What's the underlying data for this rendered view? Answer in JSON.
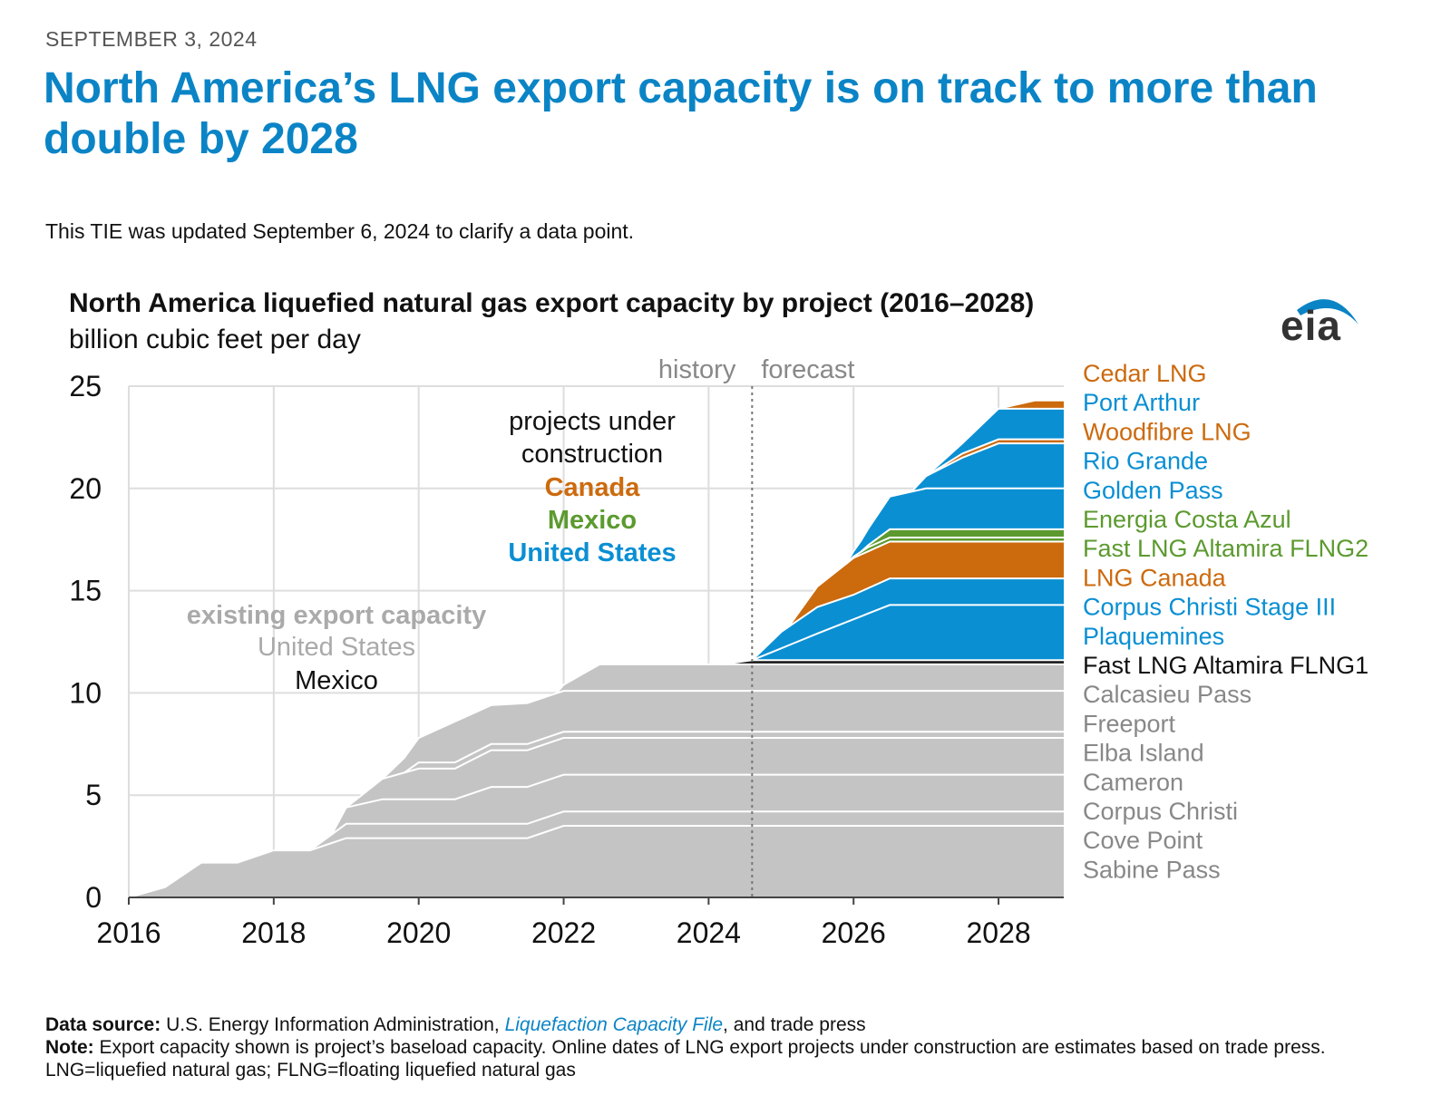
{
  "article": {
    "date": "SEPTEMBER 3, 2024",
    "headline": "North America’s LNG export capacity is on track to more than double by 2028",
    "update_note": "This TIE was updated September 6, 2024 to clarify a data point."
  },
  "logo": {
    "text": "eia"
  },
  "footer": {
    "source_label": "Data source:",
    "source_text_1": "U.S. Energy Information Administration,",
    "source_link": "Liquefaction Capacity File",
    "source_text_2": ", and trade press",
    "note_label": "Note:",
    "note_text": "Export capacity shown is project’s baseload capacity. Online dates of LNG export projects under construction are estimates based on trade press.",
    "abbrev_text": "LNG=liquefied natural gas; FLNG=floating liquefied natural gas"
  },
  "chart_data": {
    "type": "area",
    "stacked": true,
    "title": "North America liquefied natural gas export capacity by project (2016–2028)",
    "ylabel": "billion cubic feet per day",
    "xlim": [
      2016,
      2028.9
    ],
    "ylim": [
      0,
      25
    ],
    "x_ticks": [
      2016,
      2018,
      2020,
      2022,
      2024,
      2026,
      2028
    ],
    "y_ticks": [
      0,
      5,
      10,
      15,
      20,
      25
    ],
    "grid": true,
    "divider": {
      "x": 2024.6,
      "left_label": "history",
      "right_label": "forecast"
    },
    "annotations": {
      "under_construction_heading": [
        "projects under",
        "construction"
      ],
      "canada": "Canada",
      "mexico": "Mexico",
      "united_states": "United States",
      "existing_heading": "existing export capacity",
      "existing_us": "United States",
      "existing_mexico": "Mexico"
    },
    "colors": {
      "existing_us": "#c4c4c4",
      "mexico_existing": "#1a1a1a",
      "us_new": "#0a8fd3",
      "canada": "#cc6a0e",
      "mexico_new": "#5c9a2f",
      "gray_label": "#888888"
    },
    "series": [
      {
        "name": "Sabine Pass",
        "group": "existing_us",
        "points": [
          [
            2016,
            0
          ],
          [
            2016.5,
            0.5
          ],
          [
            2017,
            1.7
          ],
          [
            2017.5,
            1.7
          ],
          [
            2018,
            2.3
          ],
          [
            2018.5,
            2.3
          ],
          [
            2019,
            2.9
          ],
          [
            2021.5,
            2.9
          ],
          [
            2022,
            3.5
          ],
          [
            2028.9,
            3.5
          ]
        ]
      },
      {
        "name": "Cove Point",
        "group": "existing_us",
        "points": [
          [
            2016,
            0
          ],
          [
            2018.5,
            0
          ],
          [
            2019,
            0.7
          ],
          [
            2028.9,
            0.7
          ]
        ]
      },
      {
        "name": "Corpus Christi",
        "group": "existing_us",
        "points": [
          [
            2016,
            0
          ],
          [
            2018.8,
            0
          ],
          [
            2019,
            0.8
          ],
          [
            2019.5,
            1.2
          ],
          [
            2020,
            1.2
          ],
          [
            2020.5,
            1.2
          ],
          [
            2021,
            1.8
          ],
          [
            2028.9,
            1.8
          ]
        ]
      },
      {
        "name": "Cameron",
        "group": "existing_us",
        "points": [
          [
            2016,
            0
          ],
          [
            2019,
            0
          ],
          [
            2019.5,
            1.0
          ],
          [
            2020,
            1.5
          ],
          [
            2020.5,
            1.5
          ],
          [
            2021,
            1.8
          ],
          [
            2028.9,
            1.8
          ]
        ]
      },
      {
        "name": "Elba Island",
        "group": "existing_us",
        "points": [
          [
            2016,
            0
          ],
          [
            2019.8,
            0
          ],
          [
            2020,
            0.3
          ],
          [
            2028.9,
            0.3
          ]
        ]
      },
      {
        "name": "Freeport",
        "group": "existing_us",
        "points": [
          [
            2016,
            0
          ],
          [
            2019.5,
            0
          ],
          [
            2020,
            1.2
          ],
          [
            2020.5,
            2.0
          ],
          [
            2021,
            1.9
          ],
          [
            2021.5,
            2.0
          ],
          [
            2022,
            2.0
          ],
          [
            2028.9,
            2.0
          ]
        ]
      },
      {
        "name": "Calcasieu Pass",
        "group": "existing_us",
        "points": [
          [
            2016,
            0
          ],
          [
            2021.9,
            0
          ],
          [
            2022,
            0.3
          ],
          [
            2022.5,
            1.3
          ],
          [
            2028.9,
            1.3
          ]
        ]
      },
      {
        "name": "Fast LNG Altamira FLNG1",
        "group": "mexico_existing",
        "points": [
          [
            2016,
            0
          ],
          [
            2024.2,
            0
          ],
          [
            2024.6,
            0.2
          ],
          [
            2028.9,
            0.2
          ]
        ]
      },
      {
        "name": "Plaquemines",
        "group": "us_new",
        "points": [
          [
            2016,
            0
          ],
          [
            2024.6,
            0
          ],
          [
            2025.5,
            1.3
          ],
          [
            2026.5,
            2.7
          ],
          [
            2028.9,
            2.7
          ]
        ]
      },
      {
        "name": "Corpus Christi Stage III",
        "group": "us_new",
        "points": [
          [
            2016,
            0
          ],
          [
            2024.6,
            0
          ],
          [
            2025,
            0.8
          ],
          [
            2025.5,
            1.3
          ],
          [
            2026,
            1.2
          ],
          [
            2026.5,
            1.3
          ],
          [
            2028.9,
            1.3
          ]
        ]
      },
      {
        "name": "LNG Canada",
        "group": "canada",
        "points": [
          [
            2016,
            0
          ],
          [
            2025.1,
            0
          ],
          [
            2025.5,
            1.0
          ],
          [
            2026,
            1.8
          ],
          [
            2028.9,
            1.8
          ]
        ]
      },
      {
        "name": "Fast LNG Altamira FLNG2",
        "group": "mexico_new",
        "points": [
          [
            2016,
            0
          ],
          [
            2025.9,
            0
          ],
          [
            2026.2,
            0.2
          ],
          [
            2028.9,
            0.2
          ]
        ]
      },
      {
        "name": "Energia Costa Azul",
        "group": "mexico_new",
        "points": [
          [
            2016,
            0
          ],
          [
            2026.1,
            0
          ],
          [
            2026.5,
            0.4
          ],
          [
            2028.9,
            0.4
          ]
        ]
      },
      {
        "name": "Golden Pass",
        "group": "us_new",
        "points": [
          [
            2016,
            0
          ],
          [
            2025.9,
            0
          ],
          [
            2026.5,
            1.6
          ],
          [
            2027,
            2.0
          ],
          [
            2028.9,
            2.0
          ]
        ]
      },
      {
        "name": "Rio Grande",
        "group": "us_new",
        "points": [
          [
            2016,
            0
          ],
          [
            2026.8,
            0
          ],
          [
            2027,
            0.6
          ],
          [
            2027.5,
            1.5
          ],
          [
            2028,
            2.2
          ],
          [
            2028.9,
            2.2
          ]
        ]
      },
      {
        "name": "Woodfibre LNG",
        "group": "canada",
        "points": [
          [
            2016,
            0
          ],
          [
            2027,
            0
          ],
          [
            2027.5,
            0.2
          ],
          [
            2028.9,
            0.2
          ]
        ]
      },
      {
        "name": "Port Arthur",
        "group": "us_new",
        "points": [
          [
            2016,
            0
          ],
          [
            2027,
            0
          ],
          [
            2027.5,
            0.5
          ],
          [
            2028,
            1.5
          ],
          [
            2028.9,
            1.5
          ]
        ]
      },
      {
        "name": "Cedar LNG",
        "group": "canada",
        "points": [
          [
            2016,
            0
          ],
          [
            2028,
            0
          ],
          [
            2028.5,
            0.4
          ],
          [
            2028.9,
            0.4
          ]
        ]
      }
    ]
  }
}
